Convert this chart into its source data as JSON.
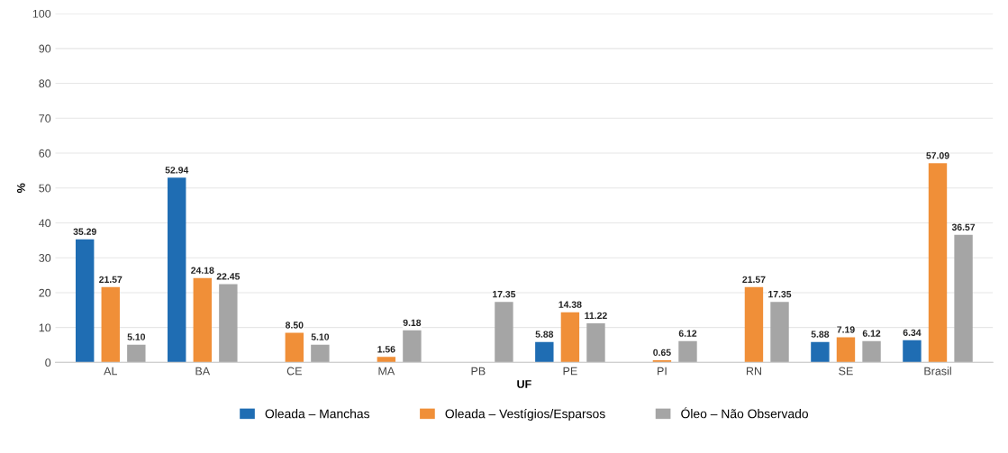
{
  "chart_data": {
    "type": "bar",
    "xlabel": "UF",
    "ylabel": "%",
    "categories": [
      "AL",
      "BA",
      "CE",
      "MA",
      "PB",
      "PE",
      "PI",
      "RN",
      "SE",
      "Brasil"
    ],
    "series": [
      {
        "name": "Oleada – Manchas",
        "color": "#1f6db3",
        "values": [
          35.29,
          52.94,
          null,
          null,
          null,
          5.88,
          null,
          null,
          5.88,
          6.34
        ],
        "value_labels": [
          "35.29",
          "52.94",
          null,
          null,
          null,
          "5.88",
          null,
          null,
          "5.88",
          "6.34"
        ]
      },
      {
        "name": "Oleada – Vestígios/Esparsos",
        "color": "#f08f38",
        "values": [
          21.57,
          24.18,
          8.5,
          1.56,
          null,
          14.38,
          0.65,
          21.57,
          7.19,
          57.09
        ],
        "value_labels": [
          "21.57",
          "24.18",
          "8.50",
          "1.56",
          null,
          "14.38",
          "0.65",
          "21.57",
          "7.19",
          "57.09"
        ]
      },
      {
        "name": "Óleo – Não Observado",
        "color": "#a5a5a5",
        "values": [
          5.1,
          22.45,
          5.1,
          9.18,
          17.35,
          11.22,
          6.12,
          17.35,
          6.12,
          36.57
        ],
        "value_labels": [
          "5.10",
          "22.45",
          "5.10",
          "9.18",
          "17.35",
          "11.22",
          "6.12",
          "17.35",
          "6.12",
          "36.57"
        ]
      }
    ],
    "ylim": [
      0,
      100
    ],
    "yticks": [
      0,
      10,
      20,
      30,
      40,
      50,
      60,
      70,
      80,
      90,
      100
    ],
    "grid": "y",
    "legend": "bottom"
  }
}
